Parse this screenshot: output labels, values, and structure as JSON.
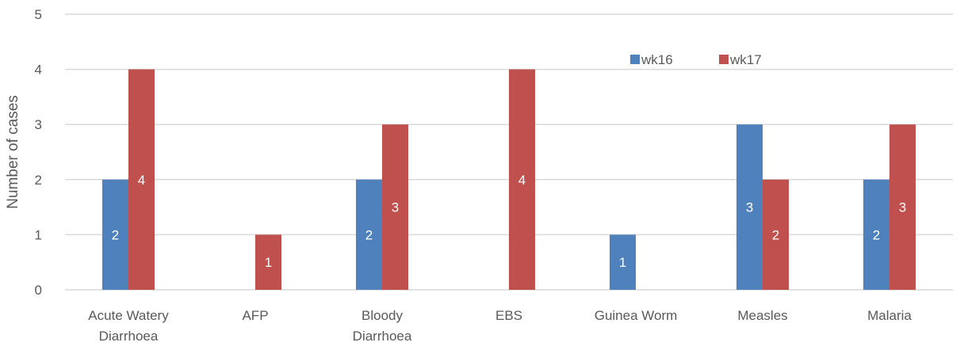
{
  "chart_data": {
    "type": "bar",
    "title": "",
    "xlabel": "",
    "ylabel": "Number of cases",
    "ylim": [
      0,
      5
    ],
    "yticks": [
      0,
      1,
      2,
      3,
      4,
      5
    ],
    "grid": true,
    "legend_position": "top-right",
    "categories": [
      [
        "Acute Watery",
        "Diarrhoea"
      ],
      [
        "AFP"
      ],
      [
        "Bloody",
        "Diarrhoea"
      ],
      [
        "EBS"
      ],
      [
        "Guinea Worm"
      ],
      [
        "Measles"
      ],
      [
        "Malaria"
      ]
    ],
    "series": [
      {
        "name": "wk16",
        "color": "#4f81bd",
        "values": [
          2,
          0,
          2,
          0,
          1,
          3,
          2
        ]
      },
      {
        "name": "wk17",
        "color": "#c0504d",
        "values": [
          4,
          1,
          3,
          4,
          0,
          2,
          3
        ]
      }
    ]
  }
}
